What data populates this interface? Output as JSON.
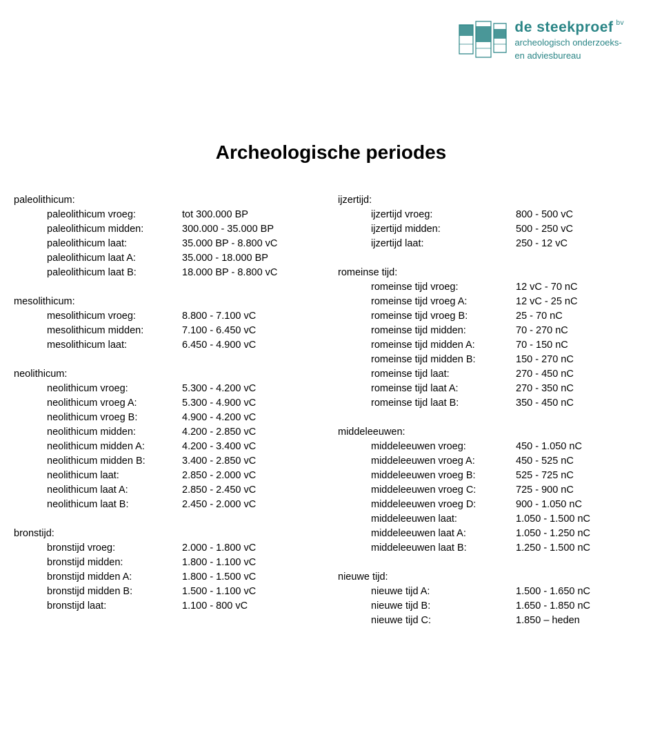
{
  "logo": {
    "name": "de steekproef",
    "bv": "bv",
    "sub1": "archeologisch onderzoeks-",
    "sub2": "en adviesbureau",
    "teal": "#2a8586"
  },
  "title": "Archeologische periodes",
  "left": [
    {
      "head": "paleolithicum:",
      "rows": [
        {
          "l": "paleolithicum vroeg:",
          "v": "tot 300.000 BP"
        },
        {
          "l": "paleolithicum midden:",
          "v": "300.000 - 35.000 BP"
        },
        {
          "l": "paleolithicum laat:",
          "v": "35.000 BP - 8.800 vC"
        },
        {
          "l": "paleolithicum laat A:",
          "v": "35.000 - 18.000 BP"
        },
        {
          "l": "paleolithicum laat B:",
          "v": "18.000 BP - 8.800 vC"
        }
      ]
    },
    {
      "head": "mesolithicum:",
      "rows": [
        {
          "l": "mesolithicum vroeg:",
          "v": "8.800 - 7.100 vC"
        },
        {
          "l": "mesolithicum midden:",
          "v": "7.100 - 6.450 vC"
        },
        {
          "l": "mesolithicum laat:",
          "v": "6.450 - 4.900 vC"
        }
      ]
    },
    {
      "head": "neolithicum:",
      "rows": [
        {
          "l": "neolithicum vroeg:",
          "v": "5.300 - 4.200 vC"
        },
        {
          "l": "neolithicum vroeg A:",
          "v": "5.300 - 4.900 vC"
        },
        {
          "l": "neolithicum vroeg B:",
          "v": "4.900 - 4.200 vC"
        },
        {
          "l": "neolithicum midden:",
          "v": "4.200 - 2.850 vC"
        },
        {
          "l": "neolithicum midden A:",
          "v": "4.200 - 3.400 vC"
        },
        {
          "l": "neolithicum midden B:",
          "v": "3.400 - 2.850 vC"
        },
        {
          "l": "neolithicum laat:",
          "v": "2.850 - 2.000 vC"
        },
        {
          "l": "neolithicum laat A:",
          "v": "2.850 - 2.450 vC"
        },
        {
          "l": "neolithicum laat B:",
          "v": "2.450 - 2.000 vC"
        }
      ]
    },
    {
      "head": "bronstijd:",
      "rows": [
        {
          "l": "bronstijd vroeg:",
          "v": "2.000 - 1.800 vC"
        },
        {
          "l": "bronstijd midden:",
          "v": "1.800 - 1.100 vC"
        },
        {
          "l": "bronstijd midden A:",
          "v": "1.800 - 1.500 vC"
        },
        {
          "l": "bronstijd midden B:",
          "v": "1.500 - 1.100 vC"
        },
        {
          "l": "bronstijd laat:",
          "v": "1.100 - 800 vC"
        }
      ]
    }
  ],
  "right": [
    {
      "head": "ijzertijd:",
      "rows": [
        {
          "l": "ijzertijd vroeg:",
          "v": "800 - 500 vC"
        },
        {
          "l": "ijzertijd midden:",
          "v": "500 - 250 vC"
        },
        {
          "l": "ijzertijd laat:",
          "v": "250 - 12 vC"
        }
      ]
    },
    {
      "head": "romeinse tijd:",
      "rows": [
        {
          "l": "romeinse tijd vroeg:",
          "v": "12 vC - 70 nC"
        },
        {
          "l": "romeinse tijd vroeg A:",
          "v": "12 vC - 25 nC"
        },
        {
          "l": "romeinse tijd vroeg B:",
          "v": "25 - 70 nC"
        },
        {
          "l": "romeinse tijd midden:",
          "v": "70 - 270 nC"
        },
        {
          "l": "romeinse tijd midden A:",
          "v": "70 - 150 nC"
        },
        {
          "l": "romeinse tijd midden B:",
          "v": "150 - 270 nC"
        },
        {
          "l": "romeinse tijd laat:",
          "v": "270 - 450 nC"
        },
        {
          "l": "romeinse tijd laat A:",
          "v": "270 - 350 nC"
        },
        {
          "l": "romeinse tijd laat B:",
          "v": "350 - 450 nC"
        }
      ]
    },
    {
      "head": "middeleeuwen:",
      "rows": [
        {
          "l": "middeleeuwen vroeg:",
          "v": "450 - 1.050 nC"
        },
        {
          "l": "middeleeuwen vroeg A:",
          "v": "450 - 525 nC"
        },
        {
          "l": "middeleeuwen vroeg B:",
          "v": "525 - 725 nC"
        },
        {
          "l": "middeleeuwen vroeg C:",
          "v": "725 - 900 nC"
        },
        {
          "l": "middeleeuwen vroeg D:",
          "v": "900 - 1.050 nC"
        },
        {
          "l": "middeleeuwen laat:",
          "v": "1.050 - 1.500 nC"
        },
        {
          "l": "middeleeuwen laat A:",
          "v": "1.050 - 1.250 nC"
        },
        {
          "l": "middeleeuwen laat B:",
          "v": "1.250 - 1.500 nC"
        }
      ]
    },
    {
      "head": "nieuwe tijd:",
      "rows": [
        {
          "l": "nieuwe tijd A:",
          "v": "1.500 - 1.650 nC"
        },
        {
          "l": "nieuwe tijd B:",
          "v": "1.650 - 1.850 nC"
        },
        {
          "l": "nieuwe tijd C:",
          "v": "1.850 – heden"
        }
      ]
    }
  ]
}
